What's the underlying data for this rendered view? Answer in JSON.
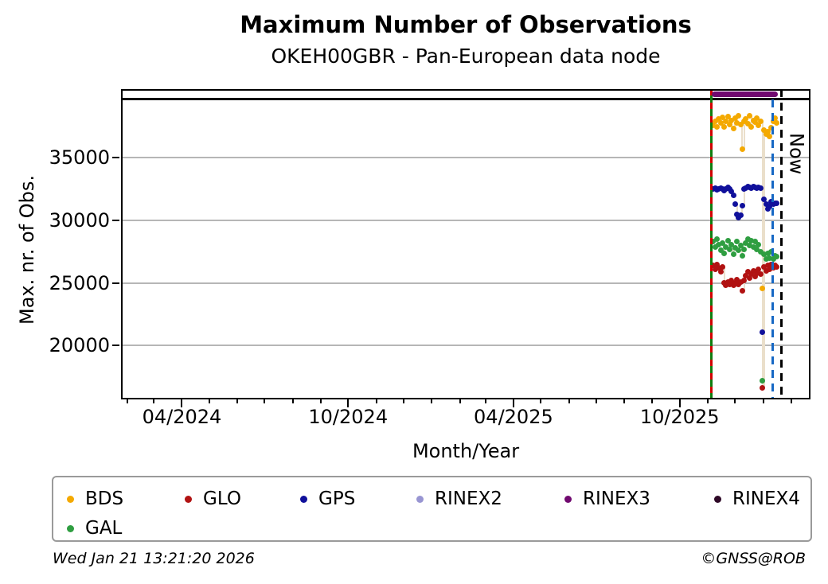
{
  "chart_data": {
    "type": "scatter",
    "title": "Maximum Number of Observations",
    "subtitle": "OKEH00GBR - Pan-European data node",
    "xlabel": "Month/Year",
    "ylabel": "Max. nr. of Obs.",
    "x_tick_labels": [
      "04/2024",
      "10/2024",
      "04/2025",
      "10/2025"
    ],
    "x_tick_dates": [
      "2024-04-01",
      "2024-10-01",
      "2025-04-01",
      "2025-10-01"
    ],
    "y_ticks": [
      20000,
      25000,
      30000,
      35000
    ],
    "xlim_dates": [
      "2024-01-25",
      "2026-02-22"
    ],
    "ylim": [
      15700,
      40500
    ],
    "grid": "horizontal-only",
    "legend_position": "bottom",
    "x_origin_date": "2025-11-07",
    "x_day_offsets": [
      0,
      2,
      4,
      6,
      8,
      10,
      12,
      14,
      16,
      18,
      20,
      22,
      24,
      26,
      28,
      30,
      32,
      34,
      36,
      38,
      40,
      42,
      44,
      46,
      48,
      50,
      52,
      54,
      56,
      58,
      60,
      62,
      64,
      66,
      68,
      70
    ],
    "series": [
      {
        "name": "BDS",
        "color": "#f4a900",
        "values": [
          37600,
          37900,
          37500,
          38100,
          37800,
          38250,
          37450,
          37900,
          38300,
          37650,
          38000,
          37350,
          38200,
          37800,
          38400,
          37700,
          35700,
          37900,
          38100,
          37750,
          38350,
          37500,
          38000,
          37850,
          38200,
          37600,
          37900,
          24600,
          37200,
          36900,
          37100,
          36700,
          37400,
          37900,
          38200,
          37800
        ]
      },
      {
        "name": "GLO",
        "color": "#b11212",
        "values": [
          26400,
          26100,
          26500,
          26200,
          25900,
          26300,
          25000,
          24800,
          25100,
          24900,
          25200,
          24800,
          25000,
          25300,
          24900,
          25100,
          24400,
          25200,
          25600,
          25900,
          25400,
          25700,
          26000,
          25500,
          25800,
          26100,
          25700,
          16600,
          26300,
          26000,
          26400,
          26100,
          26500,
          26200,
          26400,
          26300
        ]
      },
      {
        "name": "GPS",
        "color": "#10109b",
        "values": [
          32500,
          32600,
          32450,
          32550,
          32600,
          32500,
          32400,
          32550,
          32650,
          32500,
          32350,
          32000,
          31300,
          30500,
          30250,
          30400,
          31200,
          32500,
          32600,
          32700,
          32650,
          32600,
          32700,
          32650,
          32600,
          32650,
          32600,
          21100,
          31700,
          31300,
          30900,
          31100,
          31500,
          31300,
          31400,
          31350
        ]
      },
      {
        "name": "GAL",
        "color": "#2f9e41",
        "values": [
          28300,
          27900,
          28500,
          28100,
          27600,
          28200,
          27400,
          27900,
          28400,
          27700,
          28100,
          27300,
          27800,
          28300,
          27600,
          28000,
          27200,
          27700,
          28200,
          28500,
          28000,
          28400,
          27900,
          28300,
          27700,
          28100,
          27500,
          17200,
          27300,
          26900,
          27400,
          27000,
          27500,
          26900,
          27200,
          27100
        ]
      },
      {
        "name": "RINEX2",
        "color": "#9895d2",
        "values": []
      },
      {
        "name": "RINEX3",
        "color": "#70096f",
        "constant": 40100,
        "day_range": [
          -2,
          71
        ]
      },
      {
        "name": "RINEX4",
        "color": "#2e0927",
        "values": []
      }
    ],
    "reference_line": {
      "value": 39700,
      "color": "#000000"
    },
    "markers": [
      {
        "name": "data-start",
        "date": "2025-11-05",
        "style": "solid-green-with-red-dashes",
        "colors": [
          "#0f7d0f",
          "#d00000"
        ]
      },
      {
        "name": "latest-data",
        "date": "2026-01-11",
        "style": "dashed",
        "color": "#1668c4"
      },
      {
        "name": "now",
        "date": "2026-01-21",
        "style": "dashed",
        "color": "#000000",
        "label": "Now"
      }
    ]
  },
  "legend": {
    "items": [
      {
        "label": "BDS",
        "color": "#f4a900"
      },
      {
        "label": "GLO",
        "color": "#b11212"
      },
      {
        "label": "GPS",
        "color": "#10109b"
      },
      {
        "label": "RINEX2",
        "color": "#9895d2"
      },
      {
        "label": "RINEX3",
        "color": "#70096f"
      },
      {
        "label": "RINEX4",
        "color": "#2e0927"
      },
      {
        "label": "GAL",
        "color": "#2f9e41"
      }
    ]
  },
  "footer": {
    "timestamp": "Wed Jan 21 13:21:20 2026",
    "copyright": "©GNSS@ROB"
  }
}
